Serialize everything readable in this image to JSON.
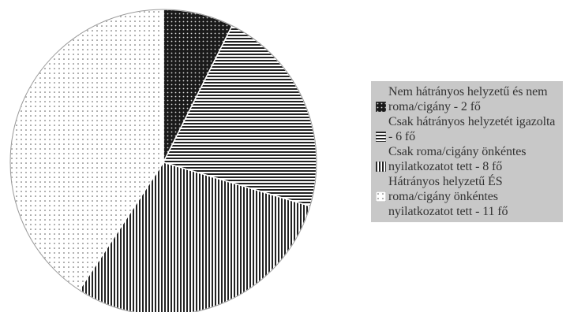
{
  "chart_data": {
    "type": "pie",
    "title": "",
    "start_angle_deg": 0,
    "direction": "clockwise",
    "slices": [
      {
        "label": "Nem hátrányos helyzetű és nem roma/cigány - 2 fő",
        "value": 2,
        "pattern": "dots-dark"
      },
      {
        "label": "Csak hátrányos helyzetét igazolta - 6 fő",
        "value": 6,
        "pattern": "horizontal-lines"
      },
      {
        "label": "Csak roma/cigány önkéntes nyilatkozatot tett - 8 fő",
        "value": 8,
        "pattern": "vertical-lines"
      },
      {
        "label": "Hátrányos helyzetű ÉS roma/cigány önkéntes nyilatkozatot tett - 11 fő",
        "value": 11,
        "pattern": "dots-light"
      }
    ],
    "legend_position": "right"
  }
}
